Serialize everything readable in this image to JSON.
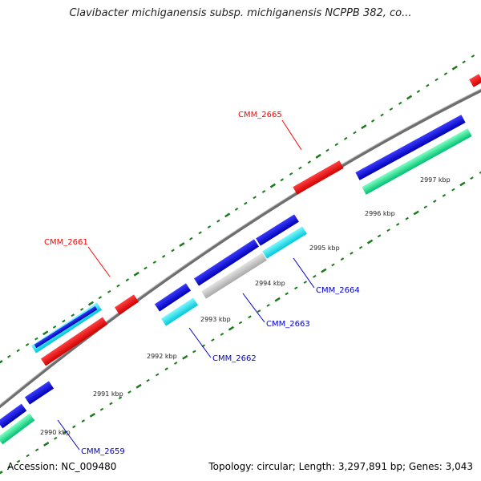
{
  "title": "Clavibacter michiganensis subsp. michiganensis NCPPB 382, co...",
  "footer": {
    "accession": "Accession: NC_009480",
    "summary": "Topology: circular; Length: 3,297,891 bp; Genes: 3,043"
  },
  "ticks": [
    "2990 kbp",
    "2991 kbp",
    "2992 kbp",
    "2993 kbp",
    "2994 kbp",
    "2995 kbp",
    "2996 kbp",
    "2997 kbp"
  ],
  "gene_labels": [
    {
      "name": "CMM_2665",
      "color": "#ff0000"
    },
    {
      "name": "CMM_2661",
      "color": "#ff0000"
    },
    {
      "name": "CMM_2664",
      "color": "#0000cc"
    },
    {
      "name": "CMM_2663",
      "color": "#0000cc"
    },
    {
      "name": "CMM_2662",
      "color": "#0000cc"
    },
    {
      "name": "CMM_2659",
      "color": "#0000cc"
    }
  ],
  "colors": {
    "backbone": "#808080",
    "forward_cds": "#0000dd",
    "reverse_cds": "#ff0000",
    "cyan_feature": "#00e5ee",
    "green_feature": "#00e68a",
    "grey_feature": "#c8c8c8",
    "tick": "#1a7a1a"
  }
}
